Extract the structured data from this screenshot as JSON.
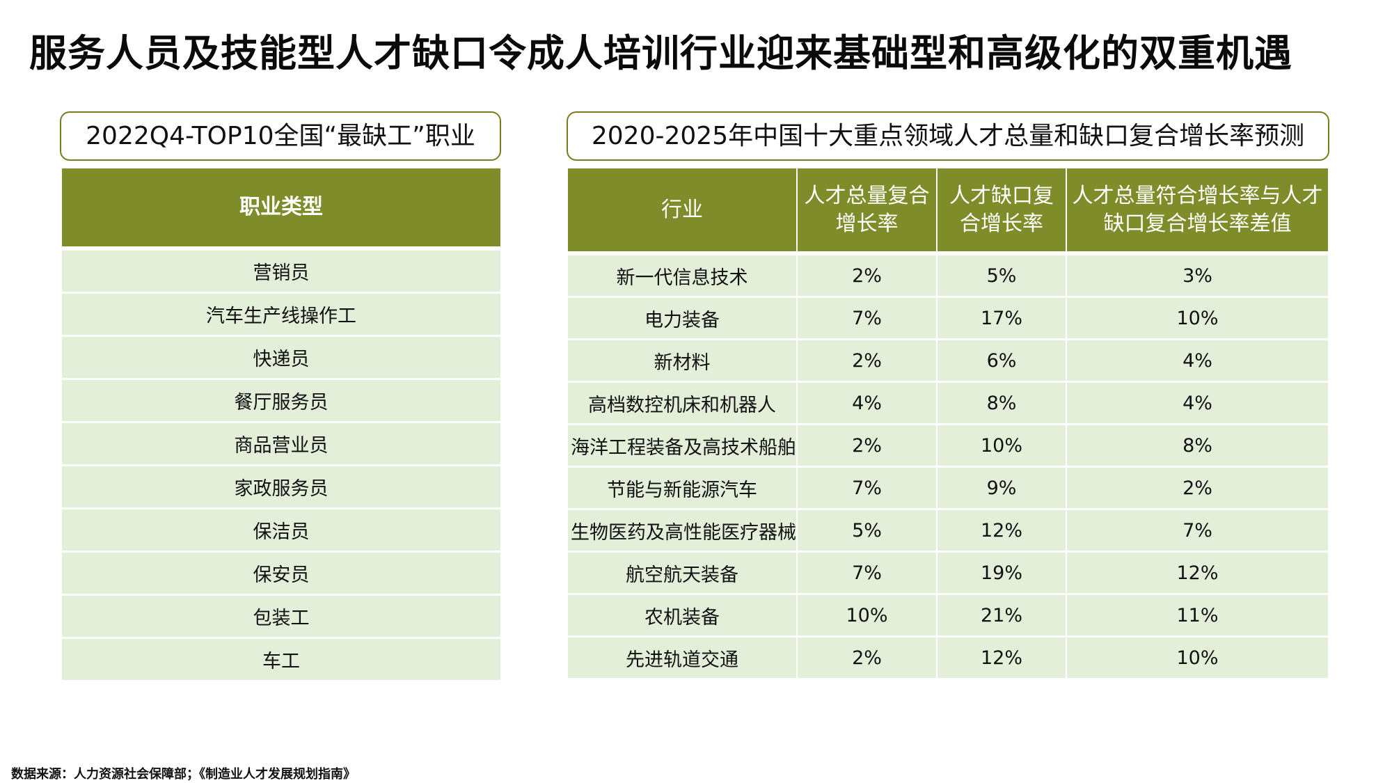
{
  "title": "服务人员及技能型人才缺口令成人培训行业迎来基础型和高级化的双重机遇",
  "left_panel": {
    "label": "2022Q4-TOP10全国“最缺工”职业",
    "header": "职业类型",
    "rows": [
      "营销员",
      "汽车生产线操作工",
      "快递员",
      "餐厅服务员",
      "商品营业员",
      "家政服务员",
      "保洁员",
      "保安员",
      "包装工",
      "车工"
    ]
  },
  "right_panel": {
    "label": "2020-2025年中国十大重点领域人才总量和缺口复合增长率预测",
    "headers": [
      "行业",
      "人才总量复合增长率",
      "人才缺口复合增长率",
      "人才总量符合增长率与人才缺口复合增长率差值"
    ],
    "rows": [
      [
        "新一代信息技术",
        "2%",
        "5%",
        "3%"
      ],
      [
        "电力装备",
        "7%",
        "17%",
        "10%"
      ],
      [
        "新材料",
        "2%",
        "6%",
        "4%"
      ],
      [
        "高档数控机床和机器人",
        "4%",
        "8%",
        "4%"
      ],
      [
        "海洋工程装备及高技术船舶",
        "2%",
        "10%",
        "8%"
      ],
      [
        "节能与新能源汽车",
        "7%",
        "9%",
        "2%"
      ],
      [
        "生物医药及高性能医疗器械",
        "5%",
        "12%",
        "7%"
      ],
      [
        "航空航天装备",
        "7%",
        "19%",
        "12%"
      ],
      [
        "农机装备",
        "10%",
        "21%",
        "11%"
      ],
      [
        "先进轨道交通",
        "2%",
        "12%",
        "10%"
      ]
    ]
  },
  "source": "数据来源：人力资源社会保障部；《制造业人才发展规划指南》",
  "colors": {
    "header_green": "#7e8c2a",
    "row_green": "#e4efda",
    "label_border": "#7a7a1e"
  }
}
